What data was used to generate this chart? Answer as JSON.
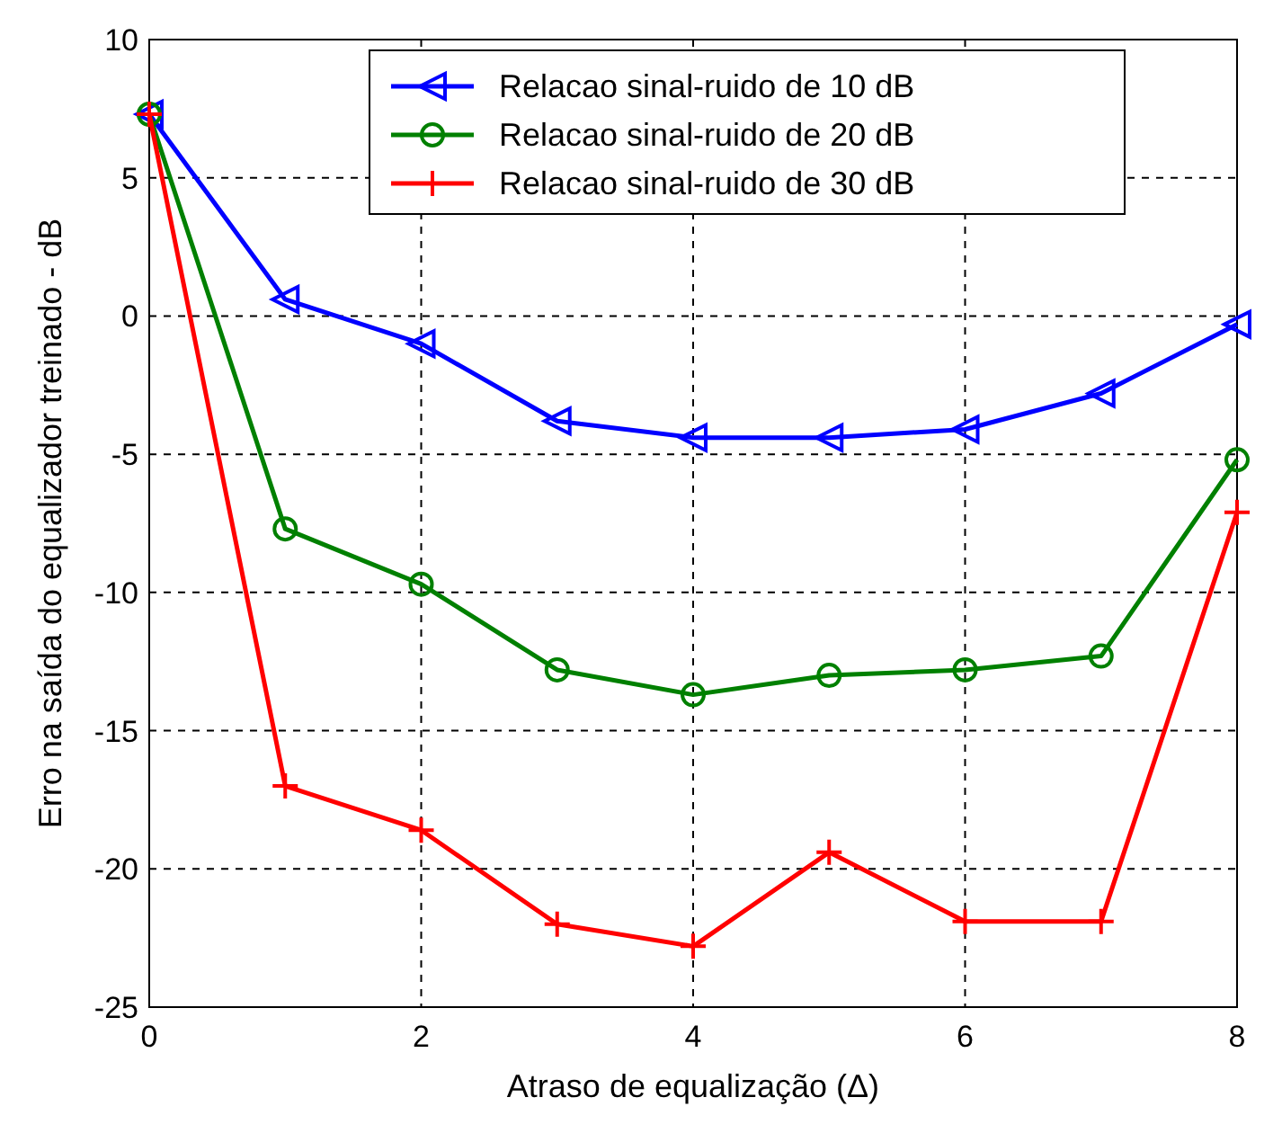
{
  "chart_data": {
    "type": "line",
    "xlabel": "Atraso de equalização (Δ)",
    "ylabel": "Erro na saída do equalizador treinado - dB",
    "x": [
      0,
      1,
      2,
      3,
      4,
      5,
      6,
      7,
      8
    ],
    "series": [
      {
        "name": "Relacao sinal-ruido de 10 dB",
        "color": "#0000ff",
        "marker": "triangle",
        "values": [
          7.3,
          0.6,
          -1.0,
          -3.8,
          -4.4,
          -4.4,
          -4.1,
          -2.8,
          -0.3
        ]
      },
      {
        "name": "Relacao sinal-ruido de 20 dB",
        "color": "#008000",
        "marker": "circle",
        "values": [
          7.3,
          -7.7,
          -9.7,
          -12.8,
          -13.7,
          -13.0,
          -12.8,
          -12.3,
          -5.2
        ]
      },
      {
        "name": "Relacao sinal-ruido de 30 dB",
        "color": "#ff0000",
        "marker": "cross",
        "values": [
          7.3,
          -17.0,
          -18.6,
          -22.0,
          -22.8,
          -19.4,
          -21.9,
          -21.9,
          -7.1
        ]
      }
    ],
    "xlim": [
      0,
      8
    ],
    "xticks": [
      0,
      2,
      4,
      6,
      8
    ],
    "ylim": [
      -25,
      10
    ],
    "yticks": [
      -25,
      -20,
      -15,
      -10,
      -5,
      0,
      5,
      10
    ],
    "grid": true,
    "legend": "top",
    "line_style": "solid"
  }
}
